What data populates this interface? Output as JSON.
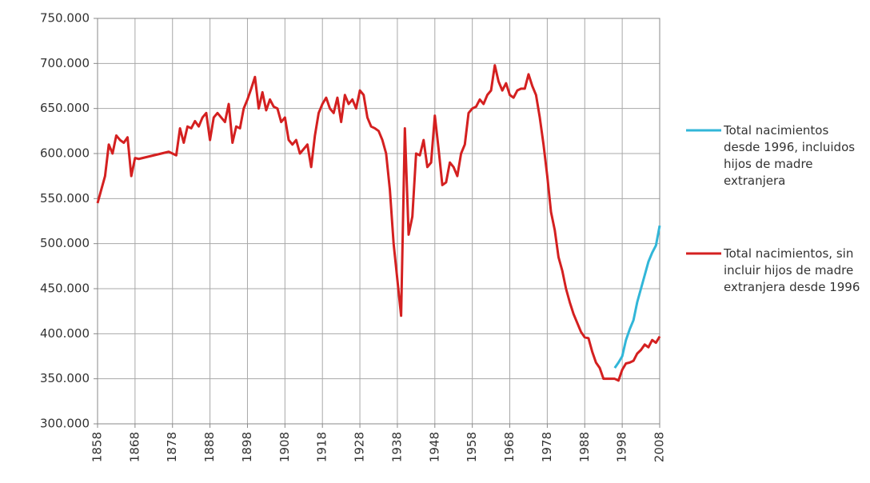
{
  "chart_data": {
    "type": "line",
    "x": [
      1858,
      1859,
      1860,
      1861,
      1862,
      1863,
      1864,
      1865,
      1866,
      1867,
      1868,
      1869,
      1870,
      1871,
      1872,
      1873,
      1874,
      1875,
      1876,
      1877,
      1878,
      1879,
      1880,
      1881,
      1882,
      1883,
      1884,
      1885,
      1886,
      1887,
      1888,
      1889,
      1890,
      1891,
      1892,
      1893,
      1894,
      1895,
      1896,
      1897,
      1898,
      1899,
      1900,
      1901,
      1902,
      1903,
      1904,
      1905,
      1906,
      1907,
      1908,
      1909,
      1910,
      1911,
      1912,
      1913,
      1914,
      1915,
      1916,
      1917,
      1918,
      1919,
      1920,
      1921,
      1922,
      1923,
      1924,
      1925,
      1926,
      1927,
      1928,
      1929,
      1930,
      1931,
      1932,
      1933,
      1934,
      1935,
      1936,
      1937,
      1938,
      1939,
      1940,
      1941,
      1942,
      1943,
      1944,
      1945,
      1946,
      1947,
      1948,
      1949,
      1950,
      1951,
      1952,
      1953,
      1954,
      1955,
      1956,
      1957,
      1958,
      1959,
      1960,
      1961,
      1962,
      1963,
      1964,
      1965,
      1966,
      1967,
      1968,
      1969,
      1970,
      1971,
      1972,
      1973,
      1974,
      1975,
      1976,
      1977,
      1978,
      1979,
      1980,
      1981,
      1982,
      1983,
      1984,
      1985,
      1986,
      1987,
      1988,
      1989,
      1990,
      1991,
      1992,
      1993,
      1994,
      1995,
      1996,
      1997,
      1998,
      1999,
      2000,
      2001,
      2002,
      2003,
      2004,
      2005,
      2006,
      2007,
      2008
    ],
    "series": [
      {
        "name": "Total nacimientos desde 1996, incluidos hijos de madre extranjera",
        "color": "#31b6d8",
        "values": [
          null,
          null,
          null,
          null,
          null,
          null,
          null,
          null,
          null,
          null,
          null,
          null,
          null,
          null,
          null,
          null,
          null,
          null,
          null,
          null,
          null,
          null,
          null,
          null,
          null,
          null,
          null,
          null,
          null,
          null,
          null,
          null,
          null,
          null,
          null,
          null,
          null,
          null,
          null,
          null,
          null,
          null,
          null,
          null,
          null,
          null,
          null,
          null,
          null,
          null,
          null,
          null,
          null,
          null,
          null,
          null,
          null,
          null,
          null,
          null,
          null,
          null,
          null,
          null,
          null,
          null,
          null,
          null,
          null,
          null,
          null,
          null,
          null,
          null,
          null,
          null,
          null,
          null,
          null,
          null,
          null,
          null,
          null,
          null,
          null,
          null,
          null,
          null,
          null,
          null,
          null,
          null,
          null,
          null,
          null,
          null,
          null,
          null,
          null,
          null,
          null,
          null,
          null,
          null,
          null,
          null,
          null,
          null,
          null,
          null,
          null,
          null,
          null,
          null,
          null,
          null,
          null,
          null,
          null,
          null,
          null,
          null,
          null,
          null,
          null,
          null,
          null,
          null,
          null,
          null,
          null,
          null,
          null,
          null,
          null,
          null,
          null,
          null,
          362000,
          368000,
          375000,
          393000,
          405000,
          415000,
          435000,
          450000,
          465000,
          480000,
          490000,
          498000,
          520000
        ]
      },
      {
        "name": "Total nacimientos, sin incluir hijos de madre extranjera desde 1996",
        "color": "#d42020",
        "values": [
          545000,
          560000,
          575000,
          610000,
          600000,
          620000,
          615000,
          612000,
          618000,
          575000,
          595000,
          594000,
          595000,
          596000,
          597000,
          598000,
          599000,
          600000,
          601000,
          602000,
          600000,
          598000,
          628000,
          612000,
          630000,
          628000,
          636000,
          630000,
          640000,
          645000,
          615000,
          640000,
          645000,
          640000,
          635000,
          655000,
          612000,
          630000,
          628000,
          650000,
          660000,
          672000,
          685000,
          650000,
          668000,
          648000,
          660000,
          652000,
          650000,
          635000,
          640000,
          615000,
          610000,
          615000,
          600000,
          605000,
          610000,
          585000,
          620000,
          645000,
          655000,
          662000,
          650000,
          645000,
          662000,
          635000,
          665000,
          655000,
          660000,
          650000,
          670000,
          665000,
          640000,
          630000,
          628000,
          625000,
          615000,
          600000,
          560000,
          500000,
          460000,
          420000,
          628000,
          510000,
          530000,
          600000,
          598000,
          615000,
          585000,
          590000,
          642000,
          605000,
          565000,
          568000,
          590000,
          585000,
          575000,
          600000,
          610000,
          645000,
          650000,
          652000,
          660000,
          655000,
          665000,
          670000,
          698000,
          680000,
          670000,
          678000,
          665000,
          662000,
          670000,
          672000,
          672000,
          688000,
          675000,
          665000,
          640000,
          610000,
          575000,
          535000,
          515000,
          485000,
          470000,
          450000,
          435000,
          422000,
          412000,
          402000,
          396000,
          395000,
          380000,
          368000,
          362000,
          350000,
          350000,
          350000,
          350000,
          348000,
          360000,
          367000,
          368000,
          370000,
          378000,
          382000,
          388000,
          385000,
          393000,
          390000,
          397000
        ]
      }
    ],
    "xlim": [
      1858,
      2008
    ],
    "xticks": [
      1858,
      1868,
      1878,
      1888,
      1898,
      1908,
      1918,
      1928,
      1938,
      1948,
      1958,
      1968,
      1978,
      1988,
      1998,
      2008
    ],
    "ylim": [
      300000,
      750000
    ],
    "yticks": [
      {
        "value": 300000,
        "label": "300.000"
      },
      {
        "value": 350000,
        "label": "350.000"
      },
      {
        "value": 400000,
        "label": "400.000"
      },
      {
        "value": 450000,
        "label": "450.000"
      },
      {
        "value": 500000,
        "label": "500.000"
      },
      {
        "value": 550000,
        "label": "550.000"
      },
      {
        "value": 600000,
        "label": "600.000"
      },
      {
        "value": 650000,
        "label": "650.000"
      },
      {
        "value": 700000,
        "label": "700.000"
      },
      {
        "value": 750000,
        "label": "750.000"
      }
    ],
    "grid": true,
    "legend": "right"
  }
}
